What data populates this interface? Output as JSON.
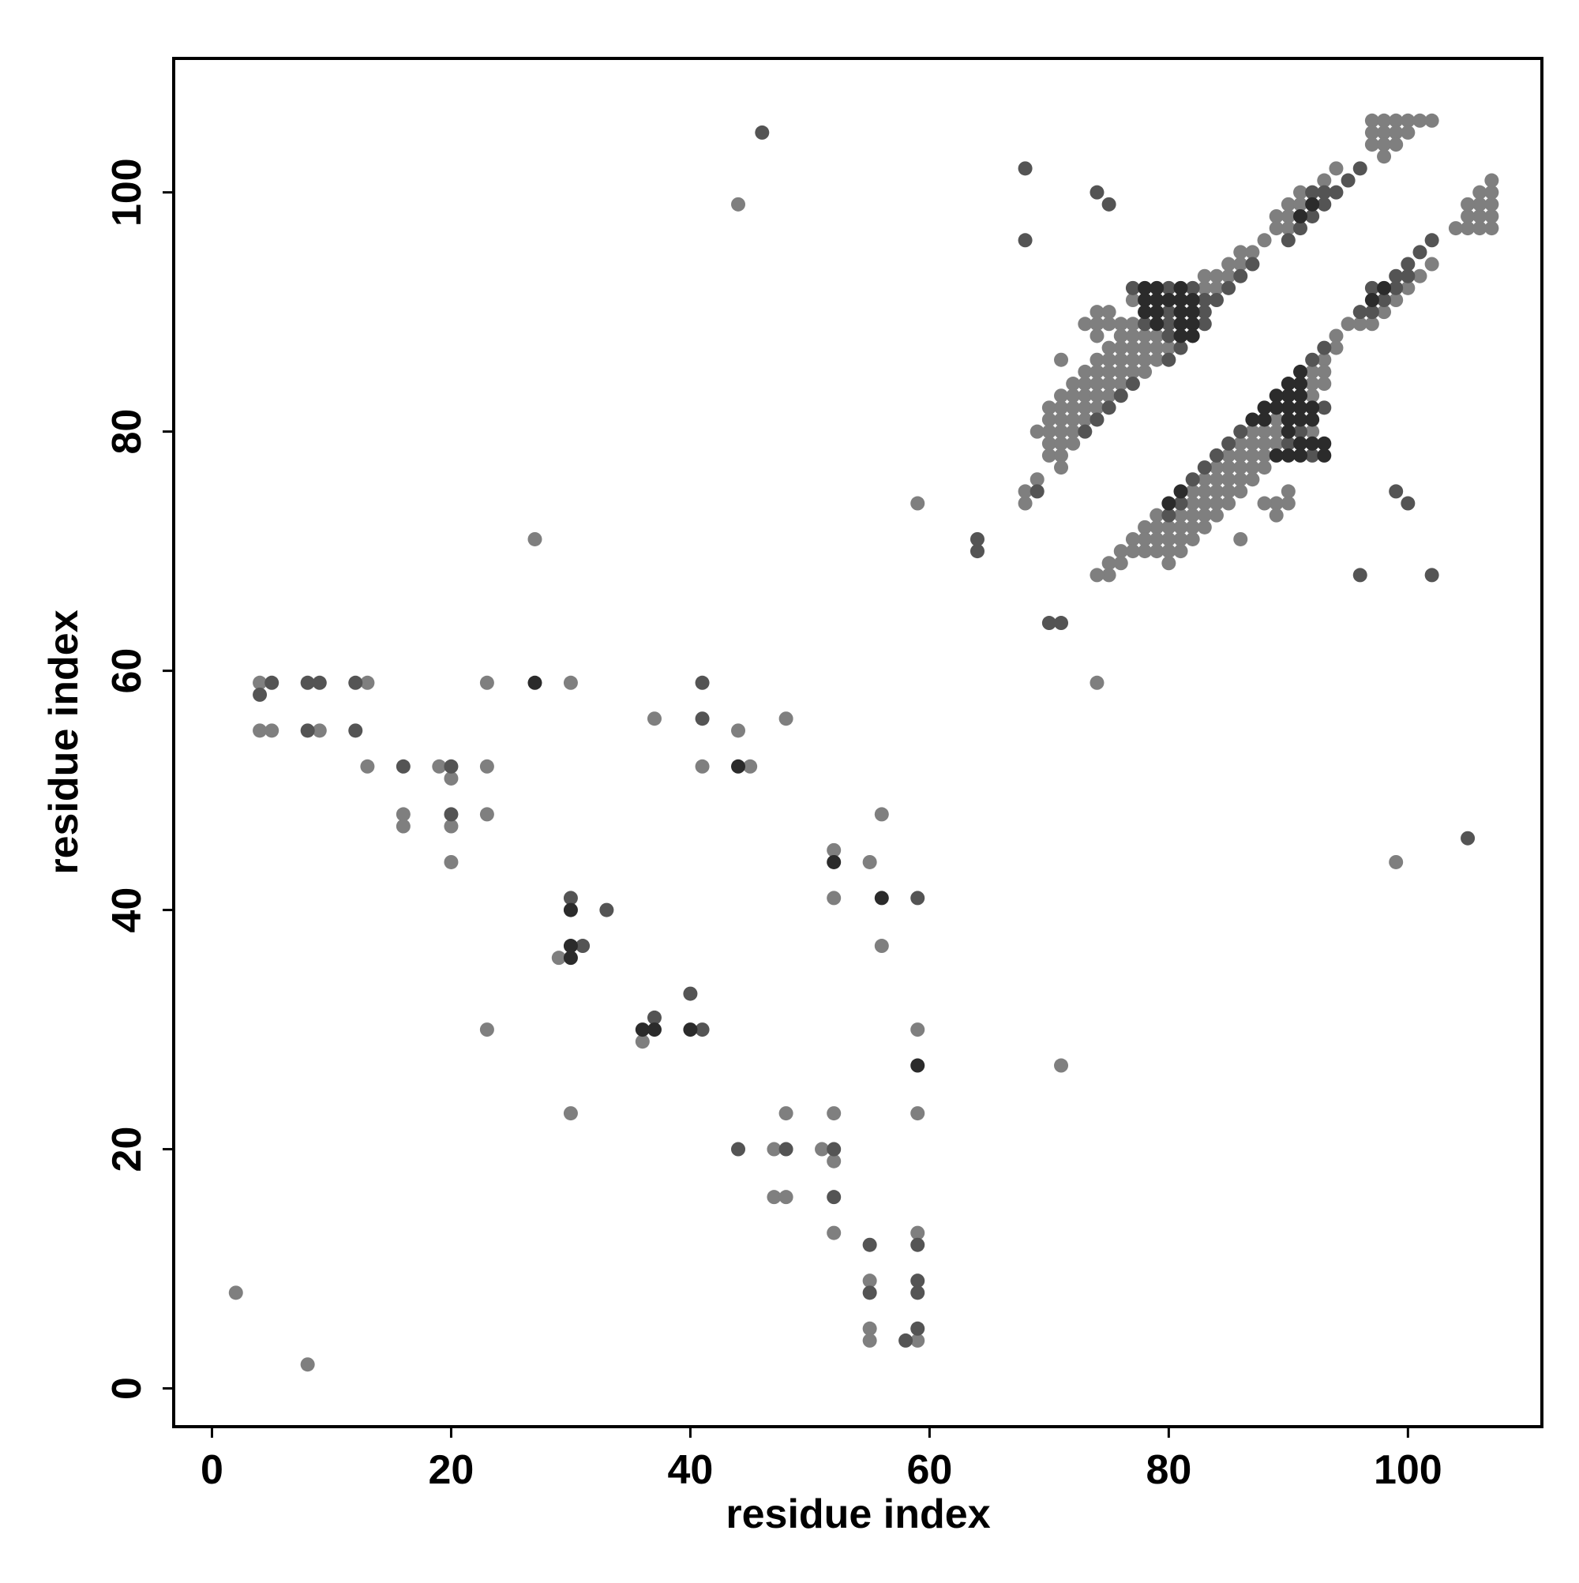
{
  "chart_data": {
    "type": "scatter",
    "xlabel": "residue index",
    "ylabel": "residue index",
    "xlim": [
      -3.2,
      111.2
    ],
    "ylim": [
      -3.2,
      111.2
    ],
    "xticks": [
      0,
      20,
      40,
      60,
      80,
      100
    ],
    "yticks": [
      0,
      20,
      40,
      60,
      80,
      100
    ],
    "grid": false,
    "series": [
      {
        "color": "#7f7f7f",
        "x": [
          44,
          59,
          27,
          74,
          99,
          71,
          2,
          8,
          4,
          4,
          5,
          9,
          13,
          13,
          16,
          16,
          19,
          20,
          20,
          20,
          23,
          23,
          23,
          30,
          23,
          29,
          37,
          41,
          44,
          45,
          48,
          36,
          30,
          52,
          52,
          55,
          56,
          56,
          59,
          59,
          52,
          48,
          47,
          47,
          48,
          51,
          52,
          52,
          55,
          55,
          55,
          59,
          59,
          97,
          98,
          99,
          100,
          101,
          102,
          97,
          98,
          99,
          100,
          97,
          98,
          99,
          98,
          94,
          93,
          91,
          90,
          91,
          89,
          90,
          89,
          90,
          88,
          86,
          87,
          85,
          86,
          83,
          84,
          85,
          83,
          84,
          77,
          74,
          75,
          73,
          74,
          75,
          76,
          77,
          74,
          76,
          77,
          78,
          79,
          75,
          76,
          77,
          78,
          79,
          80,
          71,
          74,
          75,
          76,
          77,
          78,
          79,
          73,
          74,
          75,
          76,
          77,
          78,
          72,
          73,
          74,
          75,
          76,
          71,
          72,
          73,
          74,
          75,
          70,
          71,
          72,
          73,
          74,
          70,
          71,
          72,
          73,
          69,
          70,
          71,
          72,
          70,
          71,
          72,
          70,
          71,
          71,
          69,
          68,
          68,
          107,
          107,
          107,
          107,
          107,
          106,
          106,
          106,
          106,
          105,
          105,
          105,
          104,
          102,
          101,
          100,
          99,
          98,
          97,
          96,
          95,
          94,
          94,
          93,
          93,
          93,
          92,
          92,
          92,
          92,
          90,
          90,
          89,
          89,
          89,
          89,
          89,
          88,
          88,
          88,
          88,
          88,
          87,
          87,
          87,
          87,
          87,
          86,
          86,
          86,
          86,
          86,
          86,
          85,
          85,
          85,
          85,
          85,
          84,
          84,
          84,
          84,
          84,
          83,
          83,
          83,
          83,
          83,
          82,
          82,
          82,
          82,
          82,
          81,
          81,
          81,
          81,
          80,
          80,
          80,
          80,
          79,
          79,
          79,
          79,
          78,
          78,
          78,
          77,
          77,
          76,
          76,
          75,
          75,
          74
        ],
        "y": [
          99,
          74,
          71,
          59,
          44,
          27,
          8,
          2,
          59,
          55,
          55,
          55,
          59,
          52,
          48,
          47,
          52,
          51,
          47,
          44,
          59,
          52,
          48,
          59,
          30,
          36,
          56,
          52,
          55,
          52,
          56,
          29,
          23,
          45,
          41,
          44,
          48,
          37,
          30,
          23,
          23,
          23,
          20,
          16,
          16,
          20,
          19,
          13,
          9,
          5,
          4,
          4,
          13,
          106,
          106,
          106,
          106,
          106,
          106,
          105,
          105,
          105,
          105,
          104,
          104,
          104,
          103,
          102,
          101,
          100,
          99,
          99,
          98,
          98,
          97,
          97,
          96,
          95,
          95,
          94,
          94,
          93,
          93,
          93,
          92,
          92,
          91,
          90,
          90,
          89,
          89,
          89,
          89,
          89,
          88,
          88,
          88,
          88,
          88,
          87,
          87,
          87,
          87,
          87,
          87,
          86,
          86,
          86,
          86,
          86,
          86,
          86,
          85,
          85,
          85,
          85,
          85,
          85,
          84,
          84,
          84,
          84,
          84,
          83,
          83,
          83,
          83,
          83,
          82,
          82,
          82,
          82,
          82,
          81,
          81,
          81,
          81,
          80,
          80,
          80,
          80,
          79,
          79,
          79,
          78,
          78,
          77,
          76,
          75,
          74,
          97,
          98,
          99,
          100,
          101,
          97,
          98,
          99,
          100,
          97,
          98,
          99,
          97,
          94,
          93,
          92,
          91,
          90,
          89,
          89,
          89,
          88,
          87,
          86,
          85,
          84,
          85,
          84,
          83,
          80,
          75,
          74,
          81,
          80,
          79,
          74,
          73,
          80,
          79,
          78,
          77,
          74,
          80,
          79,
          78,
          77,
          76,
          79,
          78,
          77,
          76,
          75,
          71,
          78,
          77,
          76,
          75,
          74,
          77,
          76,
          75,
          74,
          73,
          76,
          75,
          74,
          73,
          72,
          75,
          74,
          73,
          72,
          71,
          73,
          72,
          71,
          70,
          72,
          71,
          70,
          69,
          73,
          72,
          71,
          70,
          72,
          71,
          70,
          71,
          70,
          70,
          69,
          69,
          68,
          68
        ]
      },
      {
        "color": "#545454",
        "x": [
          46,
          68,
          68,
          74,
          75,
          64,
          64,
          70,
          71,
          96,
          102,
          99,
          100,
          105,
          4,
          5,
          8,
          9,
          8,
          12,
          12,
          16,
          20,
          20,
          30,
          33,
          31,
          41,
          41,
          37,
          40,
          41,
          59,
          44,
          48,
          52,
          52,
          55,
          55,
          58,
          59,
          59,
          59,
          59,
          96,
          95,
          92,
          93,
          94,
          93,
          92,
          91,
          90,
          87,
          86,
          77,
          80,
          82,
          85,
          83,
          84,
          80,
          83,
          78,
          80,
          83,
          80,
          81,
          80,
          77,
          76,
          75,
          74,
          73,
          69,
          102,
          101,
          100,
          100,
          99,
          99,
          98,
          97,
          97,
          96,
          93,
          93,
          92,
          92,
          91,
          90,
          86,
          85,
          84,
          83,
          82,
          81,
          80
        ],
        "y": [
          105,
          102,
          96,
          100,
          99,
          71,
          70,
          64,
          64,
          68,
          68,
          75,
          74,
          46,
          58,
          59,
          59,
          59,
          55,
          59,
          55,
          52,
          52,
          48,
          41,
          40,
          37,
          59,
          56,
          31,
          33,
          30,
          41,
          20,
          20,
          20,
          16,
          12,
          8,
          4,
          5,
          12,
          9,
          8,
          102,
          101,
          100,
          100,
          100,
          99,
          98,
          97,
          96,
          94,
          93,
          92,
          92,
          92,
          92,
          91,
          91,
          90,
          90,
          89,
          89,
          89,
          88,
          87,
          86,
          84,
          83,
          82,
          81,
          80,
          75,
          96,
          95,
          94,
          93,
          93,
          92,
          91,
          92,
          90,
          90,
          87,
          82,
          86,
          78,
          80,
          79,
          80,
          79,
          78,
          77,
          76,
          74,
          73
        ]
      },
      {
        "color": "#2b2b2b",
        "x": [
          27,
          30,
          30,
          30,
          44,
          36,
          37,
          40,
          52,
          56,
          59,
          92,
          91,
          78,
          79,
          81,
          78,
          79,
          80,
          81,
          82,
          78,
          79,
          81,
          82,
          79,
          81,
          82,
          81,
          82,
          98,
          97,
          93,
          93,
          92,
          92,
          92,
          91,
          91,
          91,
          91,
          91,
          91,
          91,
          90,
          90,
          90,
          90,
          90,
          90,
          89,
          89,
          89,
          88,
          88,
          87,
          81,
          80
        ],
        "y": [
          59,
          40,
          37,
          36,
          52,
          30,
          30,
          30,
          44,
          41,
          27,
          99,
          98,
          92,
          92,
          92,
          91,
          91,
          91,
          91,
          91,
          90,
          90,
          90,
          90,
          89,
          89,
          89,
          88,
          88,
          92,
          91,
          79,
          78,
          82,
          81,
          79,
          85,
          84,
          83,
          82,
          81,
          79,
          78,
          84,
          83,
          82,
          81,
          80,
          78,
          83,
          82,
          78,
          82,
          81,
          81,
          75,
          74
        ]
      }
    ]
  }
}
